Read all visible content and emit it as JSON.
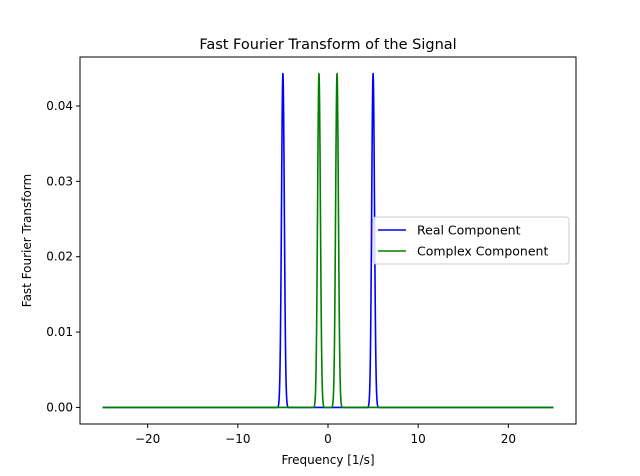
{
  "chart_data": {
    "type": "line",
    "title": "Fast Fourier Transform of the Signal",
    "xlabel": "Frequency [1/s]",
    "ylabel": "Fast Fourier Transform",
    "xlim": [
      -27.5,
      27.5
    ],
    "ylim": [
      -0.0022,
      0.0465
    ],
    "x_range": [
      -25,
      25
    ],
    "x_ticks": [
      -20,
      -10,
      0,
      10,
      20
    ],
    "x_tick_labels": [
      "−20",
      "−10",
      "0",
      "10",
      "20"
    ],
    "y_ticks": [
      0.0,
      0.01,
      0.02,
      0.03,
      0.04
    ],
    "y_tick_labels": [
      "0.00",
      "0.01",
      "0.02",
      "0.03",
      "0.04"
    ],
    "grid": false,
    "legend_position": "center-right",
    "series": [
      {
        "name": "Real Component",
        "color": "#0000ff",
        "peaks": [
          {
            "x": -5,
            "y": 0.0443,
            "width": 0.22
          },
          {
            "x": 5,
            "y": 0.0443,
            "width": 0.22
          }
        ]
      },
      {
        "name": "Complex Component",
        "color": "#008000",
        "peaks": [
          {
            "x": -1,
            "y": 0.0443,
            "width": 0.22
          },
          {
            "x": 1,
            "y": 0.0443,
            "width": 0.22
          }
        ]
      }
    ]
  }
}
